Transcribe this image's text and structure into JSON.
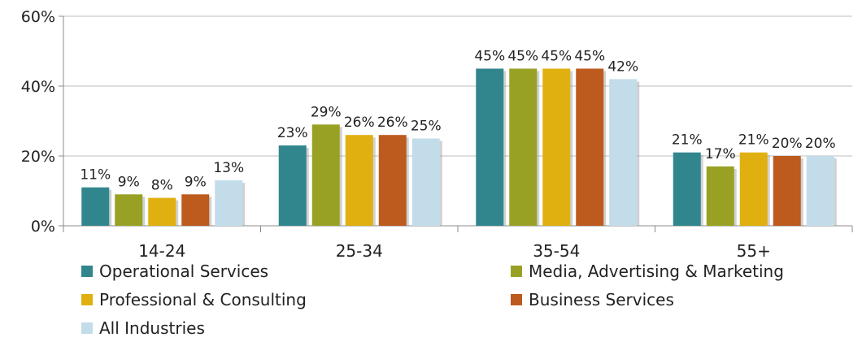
{
  "chart_data": {
    "type": "bar",
    "title": "",
    "xlabel": "",
    "ylabel": "",
    "categories": [
      "14-24",
      "25-34",
      "35-54",
      "55+"
    ],
    "ylim": [
      0,
      60
    ],
    "yticks": [
      "0%",
      "20%",
      "40%",
      "60%"
    ],
    "ytick_values": [
      0,
      20,
      40,
      60
    ],
    "value_suffix": "%",
    "grid": true,
    "legend_position": "bottom",
    "series": [
      {
        "name": "Operational Services",
        "color": "#31868E",
        "values": [
          11,
          23,
          45,
          21
        ]
      },
      {
        "name": "Media, Advertising & Marketing",
        "color": "#98A124",
        "values": [
          9,
          29,
          45,
          17
        ]
      },
      {
        "name": "Professional & Consulting",
        "color": "#E0B010",
        "values": [
          8,
          26,
          45,
          21
        ]
      },
      {
        "name": "Business Services",
        "color": "#BD5A1E",
        "values": [
          9,
          26,
          45,
          20
        ]
      },
      {
        "name": "All Industries",
        "color": "#C3DCEA",
        "values": [
          13,
          25,
          42,
          20
        ]
      }
    ]
  }
}
